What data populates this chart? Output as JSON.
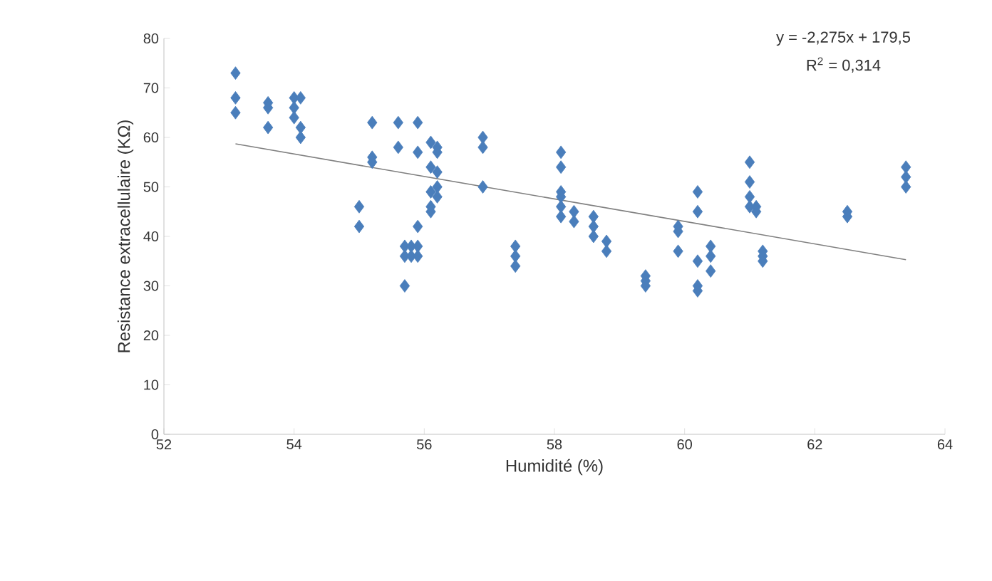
{
  "chart_data": {
    "type": "scatter",
    "xlabel": "Humidité (%)",
    "ylabel": "Resistance  extracellulaire (KΩ)",
    "xlim": [
      52,
      64
    ],
    "xticks": [
      52,
      54,
      56,
      58,
      60,
      62,
      64
    ],
    "ylim": [
      0,
      80
    ],
    "yticks": [
      0,
      10,
      20,
      30,
      40,
      50,
      60,
      70,
      80
    ],
    "marker": "diamond",
    "grid": false,
    "annotations": [
      "y = -2,275x + 179,5",
      "R$^{2}$ = 0,314"
    ],
    "series": [
      {
        "color": "#4a7ebb",
        "x": [
          53.1,
          53.1,
          53.1,
          53.6,
          53.6,
          53.6,
          54.0,
          54.0,
          54.0,
          54.1,
          54.1,
          54.1,
          55.0,
          55.0,
          55.2,
          55.2,
          55.2,
          55.6,
          55.6,
          55.7,
          55.7,
          55.7,
          55.8,
          55.8,
          55.9,
          55.9,
          55.9,
          55.9,
          55.9,
          56.1,
          56.1,
          56.1,
          56.1,
          56.1,
          56.2,
          56.2,
          56.2,
          56.2,
          56.2,
          56.9,
          56.9,
          56.9,
          57.4,
          57.4,
          57.4,
          58.1,
          58.1,
          58.1,
          58.1,
          58.1,
          58.1,
          58.3,
          58.3,
          58.6,
          58.6,
          58.6,
          58.8,
          58.8,
          59.4,
          59.4,
          59.4,
          59.9,
          59.9,
          59.9,
          60.2,
          60.2,
          60.2,
          60.2,
          60.2,
          60.4,
          60.4,
          60.4,
          61.0,
          61.0,
          61.0,
          61.0,
          61.1,
          61.1,
          61.2,
          61.2,
          61.2,
          62.5,
          62.5,
          63.4,
          63.4,
          63.4
        ],
        "values": [
          73,
          68,
          65,
          67,
          66,
          62,
          68,
          66,
          64,
          68,
          62,
          60,
          46,
          42,
          63,
          56,
          55,
          63,
          58,
          38,
          36,
          30,
          38,
          36,
          63,
          57,
          42,
          38,
          36,
          59,
          54,
          49,
          46,
          45,
          58,
          57,
          53,
          50,
          48,
          60,
          58,
          50,
          38,
          36,
          34,
          57,
          54,
          49,
          48,
          46,
          44,
          45,
          43,
          44,
          42,
          40,
          39,
          37,
          32,
          31,
          30,
          42,
          41,
          37,
          49,
          45,
          35,
          30,
          29,
          38,
          36,
          33,
          55,
          51,
          48,
          46,
          46,
          45,
          37,
          36,
          35,
          45,
          44,
          54,
          52,
          50
        ]
      },
      {
        "type": "line",
        "color": "#808080",
        "marker": "none",
        "x": [
          53.1,
          63.4
        ],
        "values": [
          58.7,
          35.3
        ]
      }
    ]
  }
}
